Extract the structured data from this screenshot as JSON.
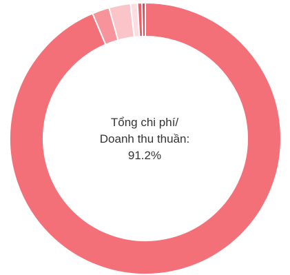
{
  "chart_data": {
    "type": "pie",
    "donut": true,
    "title": "",
    "center_text": {
      "line1": "Tổng chi phí/",
      "line2": "Doanh thu thuần:",
      "line3": "91.2%"
    },
    "slices": [
      {
        "value": 91.2,
        "color": "#f47079"
      },
      {
        "value": 2.0,
        "color": "#f7949b"
      },
      {
        "value": 2.5,
        "color": "#fbc4c8"
      },
      {
        "value": 0.8,
        "color": "#fcdde0"
      },
      {
        "value": 0.5,
        "color": "#ef5a66"
      },
      {
        "value": 0.4,
        "color": "#e84452"
      }
    ],
    "legend": "none"
  }
}
